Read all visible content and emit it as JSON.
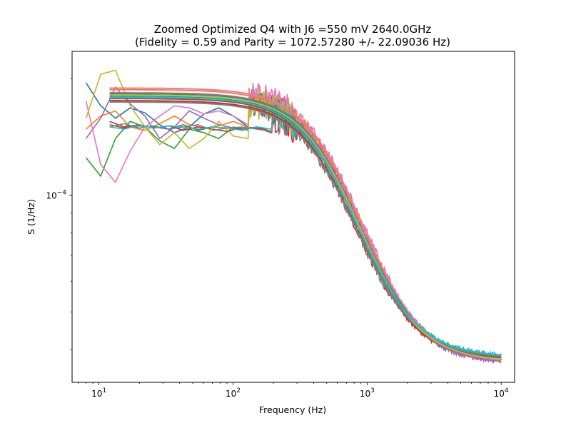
{
  "chart_data": {
    "type": "line",
    "title": "Zoomed Optimized Q4 with J6 =550 mV 2640.0GHz",
    "subtitle": "(Fidelity = 0.59 and Parity = 1072.57280 +/- 22.09036 Hz)",
    "xlabel": "Frequency (Hz)",
    "ylabel": "S (1/Hz)",
    "xscale": "log",
    "yscale": "log",
    "xlim": [
      6.3,
      12600
    ],
    "ylim": [
      3.29e-05,
      0.000235
    ],
    "x_ticks": [
      {
        "value": 10,
        "base": "10",
        "exp": "1"
      },
      {
        "value": 100,
        "base": "10",
        "exp": "2"
      },
      {
        "value": 1000,
        "base": "10",
        "exp": "3"
      },
      {
        "value": 10000,
        "base": "10",
        "exp": "4"
      }
    ],
    "y_ticks": [
      {
        "value": 0.0001,
        "base": "10",
        "exp": "−4"
      }
    ],
    "grid": false,
    "legend": "none",
    "colors": [
      "#1f77b4",
      "#ff7f0e",
      "#2ca02c",
      "#d62728",
      "#9467bd",
      "#8c564b",
      "#e377c2",
      "#7f7f7f",
      "#bcbd22",
      "#17becf"
    ],
    "fit_model": {
      "form": "lorentzian_plus_offset",
      "fits": [
        {
          "A": 0.000142,
          "f0": 590,
          "C": 3.77e-05
        },
        {
          "A": 0.00015,
          "f0": 615,
          "C": 3.72e-05
        },
        {
          "A": 0.000145,
          "f0": 600,
          "C": 3.78e-05
        },
        {
          "A": 0.000138,
          "f0": 580,
          "C": 3.74e-05
        },
        {
          "A": 0.000147,
          "f0": 605,
          "C": 3.68e-05
        },
        {
          "A": 0.00014,
          "f0": 595,
          "C": 3.76e-05
        },
        {
          "A": 0.000152,
          "f0": 620,
          "C": 3.7e-05
        },
        {
          "A": 0.000136,
          "f0": 575,
          "C": 3.8e-05
        },
        {
          "A": 0.000144,
          "f0": 598,
          "C": 3.73e-05
        },
        {
          "A": 0.000141,
          "f0": 585,
          "C": 3.82e-05
        }
      ]
    },
    "measured_series": [
      {
        "low": [
          0.000195,
          0.00017,
          0.000158,
          0.000168,
          0.000163,
          0.000152,
          0.000145,
          0.00015,
          0.000162,
          0.000168,
          0.00016,
          0.00015
        ],
        "start": 8
      },
      {
        "low": [
          0.000148,
          0.00016,
          0.000165,
          0.00015,
          0.000147,
          0.000153,
          0.00016,
          0.000152,
          0.000149,
          0.000151,
          0.000155,
          0.00015
        ],
        "start": 8
      },
      {
        "low": [
          0.000125,
          0.000112,
          0.00014,
          0.000155,
          0.00015,
          0.000138,
          0.000132,
          0.000148,
          0.000145,
          0.00014,
          0.00015,
          0.000147
        ],
        "start": 8
      },
      {
        "low": [
          0.000155,
          0.00015,
          0.000152,
          0.000149,
          0.000151,
          0.000147,
          0.00015,
          0.000148,
          0.000146,
          0.00015,
          0.000149,
          0.000145
        ],
        "start": 12
      },
      {
        "low": [
          0.00014,
          0.000158,
          0.00019,
          0.000172,
          0.00016,
          0.00014,
          0.00015,
          0.000165,
          0.000158,
          0.000152,
          0.000149,
          0.00015
        ],
        "start": 8
      },
      {
        "low": [
          0.000152,
          0.000149,
          0.000151,
          0.00015,
          0.000148,
          0.000152,
          0.000147,
          0.00015,
          0.000149,
          0.000148,
          0.00015,
          0.000146
        ],
        "start": 12
      },
      {
        "low": [
          0.000175,
          0.00012,
          0.000108,
          0.00013,
          0.00015,
          0.00016,
          0.00017,
          0.000168,
          0.000162,
          0.000165,
          0.00016,
          0.000152
        ],
        "start": 8
      },
      {
        "low": [
          0.00015,
          0.000153,
          0.000149,
          0.000151,
          0.000148,
          0.00015,
          0.000152,
          0.000147,
          0.000149,
          0.00015,
          0.000148,
          0.000146
        ],
        "start": 12
      },
      {
        "low": [
          0.000158,
          0.000205,
          0.00021,
          0.00017,
          0.00015,
          0.000135,
          0.000145,
          0.000132,
          0.00014,
          0.000155,
          0.000142,
          0.00014
        ],
        "start": 8
      },
      {
        "low": [
          0.00015,
          0.000148,
          0.000152,
          0.000149,
          0.000151,
          0.00015,
          0.000148,
          0.00015,
          0.000149,
          0.000147,
          0.00015,
          0.000148
        ],
        "start": 12
      }
    ]
  }
}
